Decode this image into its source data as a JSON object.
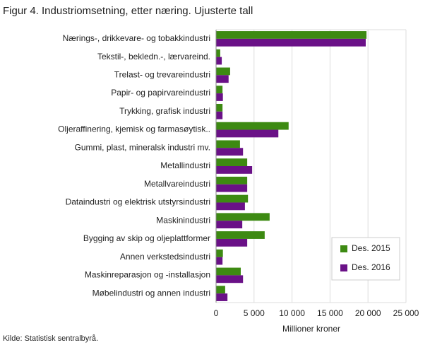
{
  "chart_data": {
    "type": "hbar",
    "title": "Figur 4. Industriomsetning, etter næring. Ujusterte tall",
    "x_label": "Millioner kroner",
    "source": "Kilde: Statistisk sentralbyrå.",
    "categories": [
      "Nærings-, drikkevare- og tobakkindustri",
      "Tekstil-, bekledn.-, lærvareind.",
      "Trelast- og trevareindustri",
      "Papir- og papirvareindustri",
      "Trykking, grafisk industri",
      "Oljeraffinering, kjemisk og farmasøytisk..",
      "Gummi, plast, mineralsk industri mv.",
      "Metallindustri",
      "Metallvareindustri",
      "Dataindustri og elektrisk utstyrsindustri",
      "Maskinindustri",
      "Bygging av skip og oljeplattformer",
      "Annen verkstedsindustri",
      "Maskinreparasjon og -installasjon",
      "Møbelindustri og annen industri"
    ],
    "series": [
      {
        "name": "Des. 2015",
        "color": "#3d8a12",
        "values": [
          19800,
          550,
          1850,
          850,
          850,
          9550,
          3150,
          4100,
          4100,
          4200,
          7050,
          6400,
          900,
          3250,
          1200
        ]
      },
      {
        "name": "Des. 2016",
        "color": "#6a1187",
        "values": [
          19700,
          750,
          1650,
          900,
          850,
          8200,
          3550,
          4750,
          4100,
          3800,
          3450,
          4100,
          850,
          3550,
          1500
        ]
      }
    ],
    "xlim": [
      0,
      25000
    ],
    "xticks": [
      0,
      {
        "value": 5000,
        "label": "5 000"
      },
      {
        "value": 10000,
        "label": "10 000"
      },
      {
        "value": 15000,
        "label": "15 000"
      },
      {
        "value": 20000,
        "label": "20 000"
      },
      {
        "value": 25000,
        "label": "25 000"
      }
    ],
    "grid": true,
    "legend": "lower right"
  }
}
